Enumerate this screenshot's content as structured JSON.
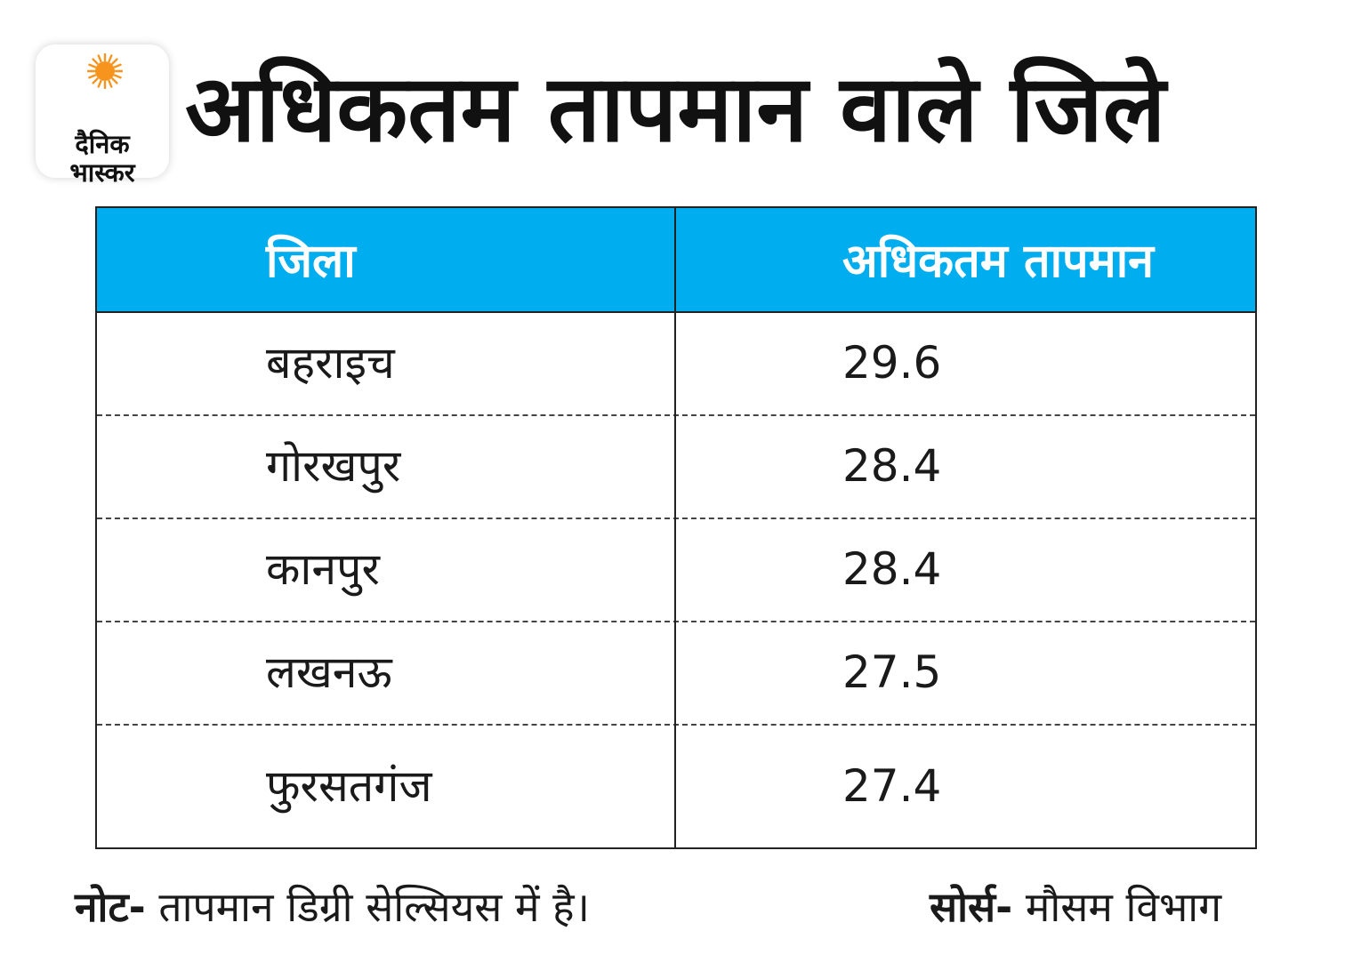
{
  "brand": {
    "logo_line1": "दैनिक",
    "logo_line2": "भास्कर",
    "sun_color": "#f7941d"
  },
  "title": "अधिकतम तापमान वाले जिले",
  "table": {
    "header_color": "#00aeef",
    "columns": [
      "जिला",
      "अधिकतम तापमान"
    ],
    "rows": [
      {
        "district": "बहराइच",
        "max_temp": "29.6"
      },
      {
        "district": "गोरखपुर",
        "max_temp": "28.4"
      },
      {
        "district": "कानपुर",
        "max_temp": "28.4"
      },
      {
        "district": "लखनऊ",
        "max_temp": "27.5"
      },
      {
        "district": "फुरसतगंज",
        "max_temp": "27.4"
      }
    ]
  },
  "footer": {
    "note_label": "नोट-",
    "note_text": "तापमान डिग्री सेल्सियस में है।",
    "source_label": "सोर्स-",
    "source_text": "मौसम विभाग"
  }
}
